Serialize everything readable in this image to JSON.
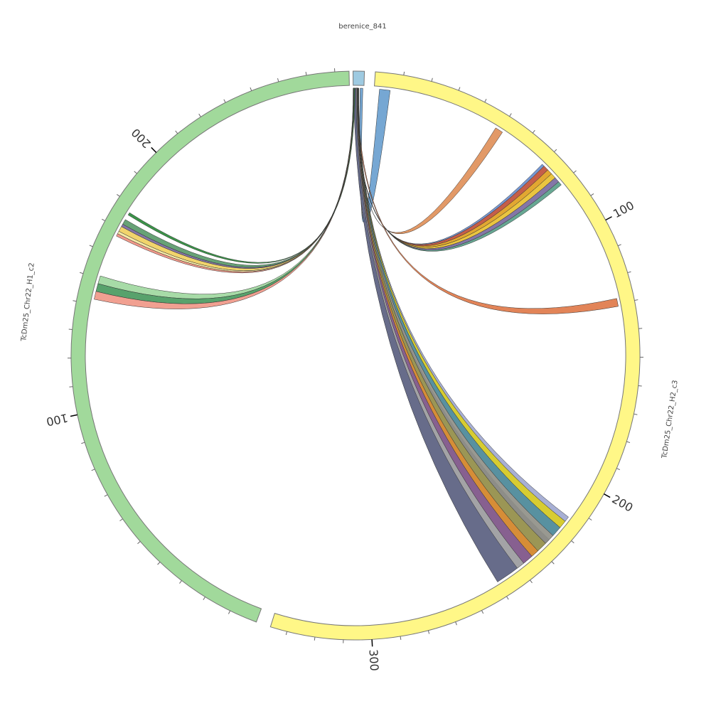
{
  "diagram": {
    "type": "chord",
    "tick_step": 10,
    "label_step": 100,
    "segments": [
      {
        "id": "b",
        "name": "berenice_841",
        "length": 4,
        "color": "#9ecae1"
      },
      {
        "id": "h2",
        "name": "TcDm25_Chr22_H2_c3",
        "length": 336,
        "color": "#fff787"
      },
      {
        "id": "h1",
        "name": "TcDm25_Chr22_H1_c2",
        "length": 275,
        "color": "#a1d99b"
      }
    ],
    "tick_labels": {
      "h2": [
        "100",
        "200",
        "300"
      ],
      "h1": [
        "100",
        "200"
      ]
    },
    "links": [
      {
        "from": [
          "b",
          2.6,
          3.6
        ],
        "to": [
          "h2",
          2,
          6
        ],
        "color": "#6a9fcf"
      },
      {
        "from": [
          "b",
          1.4,
          1.8
        ],
        "to": [
          "h2",
          48,
          51
        ],
        "color": "#e0905a"
      },
      {
        "from": [
          "b",
          1.2,
          1.4
        ],
        "to": [
          "h2",
          70,
          71
        ],
        "color": "#6a8fcf"
      },
      {
        "from": [
          "b",
          1.1,
          1.3
        ],
        "to": [
          "h2",
          71,
          73
        ],
        "color": "#c0503a"
      },
      {
        "from": [
          "b",
          1.0,
          1.2
        ],
        "to": [
          "h2",
          73,
          75
        ],
        "color": "#e0a020"
      },
      {
        "from": [
          "b",
          0.9,
          1.1
        ],
        "to": [
          "h2",
          75,
          77
        ],
        "color": "#e8c030"
      },
      {
        "from": [
          "b",
          0.8,
          1.0
        ],
        "to": [
          "h2",
          77,
          79
        ],
        "color": "#7a6aa0"
      },
      {
        "from": [
          "b",
          0.7,
          0.9
        ],
        "to": [
          "h2",
          79,
          80.5
        ],
        "color": "#5aa08a"
      },
      {
        "from": [
          "b",
          1.5,
          1.9
        ],
        "to": [
          "h2",
          128,
          131
        ],
        "color": "#e07a4a"
      },
      {
        "from": [
          "b",
          0.2,
          1.6
        ],
        "to": [
          "h2",
          225,
          250
        ],
        "color": "#5a6080"
      },
      {
        "from": [
          "b",
          1.8,
          2.1
        ],
        "to": [
          "h2",
          214,
          216
        ],
        "color": "#a0a8d0"
      },
      {
        "from": [
          "b",
          1.7,
          2.0
        ],
        "to": [
          "h2",
          216,
          219
        ],
        "color": "#d4c820"
      },
      {
        "from": [
          "b",
          1.6,
          1.9
        ],
        "to": [
          "h2",
          219,
          223
        ],
        "color": "#4a8898"
      },
      {
        "from": [
          "b",
          1.5,
          1.8
        ],
        "to": [
          "h2",
          223,
          227
        ],
        "color": "#909088"
      },
      {
        "from": [
          "b",
          1.4,
          1.7
        ],
        "to": [
          "h2",
          227,
          231
        ],
        "color": "#a09a50"
      },
      {
        "from": [
          "b",
          1.3,
          1.6
        ],
        "to": [
          "h2",
          231,
          234
        ],
        "color": "#e09030"
      },
      {
        "from": [
          "b",
          1.2,
          1.5
        ],
        "to": [
          "h2",
          234,
          238
        ],
        "color": "#8a6090"
      },
      {
        "from": [
          "b",
          1.1,
          1.4
        ],
        "to": [
          "h2",
          238,
          241
        ],
        "color": "#a8a8a8"
      },
      {
        "from": [
          "b",
          0.0,
          0.3
        ],
        "to": [
          "h1",
          172,
          174
        ],
        "color": "#5a9a6a"
      },
      {
        "from": [
          "b",
          0.05,
          0.3
        ],
        "to": [
          "h1",
          171,
          172
        ],
        "color": "#7a6aa0"
      },
      {
        "from": [
          "b",
          0.1,
          0.35
        ],
        "to": [
          "h1",
          169,
          171
        ],
        "color": "#f0d060"
      },
      {
        "from": [
          "b",
          0.15,
          0.4
        ],
        "to": [
          "h1",
          168,
          169
        ],
        "color": "#f5e8a0"
      },
      {
        "from": [
          "b",
          0.2,
          0.45
        ],
        "to": [
          "h1",
          167,
          168
        ],
        "color": "#f09080"
      },
      {
        "from": [
          "b",
          0.0,
          0.25
        ],
        "to": [
          "h1",
          148,
          151
        ],
        "color": "#a0d8a0"
      },
      {
        "from": [
          "b",
          0.1,
          0.35
        ],
        "to": [
          "h1",
          145,
          148
        ],
        "color": "#4a9a60"
      },
      {
        "from": [
          "b",
          0.2,
          0.45
        ],
        "to": [
          "h1",
          142,
          145
        ],
        "color": "#f09888"
      },
      {
        "from": [
          "b",
          0.3,
          0.6
        ],
        "to": [
          "h1",
          176,
          177
        ],
        "color": "#2a8a3a"
      }
    ]
  }
}
